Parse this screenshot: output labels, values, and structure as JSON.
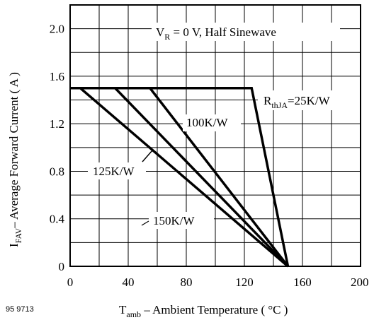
{
  "figure_code": "95 9713",
  "annotation_top": {
    "v": "V",
    "r": "R",
    "rest": " = 0 V, Half Sinewave"
  },
  "rth_label": {
    "r": "R",
    "sub": "thJA",
    "rest": "=25K/W"
  },
  "label_100": "100K/W",
  "label_125": "125K/W",
  "label_150": "150K/W",
  "xlabel": {
    "t": "T",
    "sub": "amb",
    "rest": " – Ambient Temperature ( °C )"
  },
  "ylabel": {
    "i": "I",
    "sub": "FAV",
    "rest": "– Average Forward Current ( A )"
  },
  "chart_data": {
    "type": "line",
    "xlim": [
      0,
      200
    ],
    "ylim": [
      0,
      2.2
    ],
    "x_ticks": [
      0,
      40,
      80,
      120,
      160,
      200
    ],
    "y_ticks": [
      0,
      0.4,
      0.8,
      1.2,
      1.6,
      2.0
    ],
    "x_tick_labels": [
      "0",
      "40",
      "80",
      "120",
      "160",
      "200"
    ],
    "y_tick_labels": [
      "0",
      "0.4",
      "0.8",
      "1.2",
      "1.6",
      "2.0"
    ],
    "grid": true,
    "series": [
      {
        "name": "RthJA=25K/W",
        "points": [
          [
            0,
            1.5
          ],
          [
            125,
            1.5
          ],
          [
            150,
            0
          ]
        ]
      },
      {
        "name": "100K/W",
        "points": [
          [
            0,
            1.5
          ],
          [
            55,
            1.5
          ],
          [
            150,
            0
          ]
        ]
      },
      {
        "name": "125K/W",
        "points": [
          [
            0,
            1.5
          ],
          [
            31,
            1.5
          ],
          [
            150,
            0
          ]
        ]
      },
      {
        "name": "150K/W",
        "points": [
          [
            0,
            1.5
          ],
          [
            7,
            1.5
          ],
          [
            150,
            0
          ]
        ]
      }
    ]
  }
}
